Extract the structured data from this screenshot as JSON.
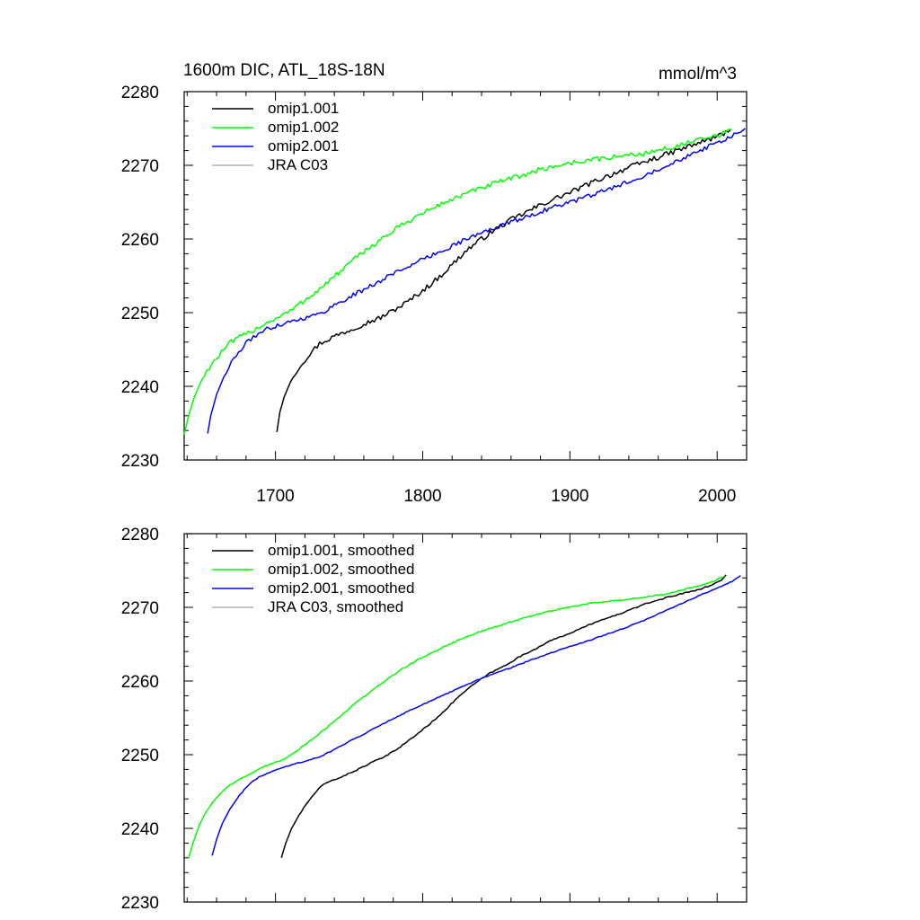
{
  "chart_data": [
    {
      "type": "line",
      "title": "1600m DIC, ATL_18S-18N",
      "units": "mmol/m^3",
      "xlabel": "",
      "ylabel": "",
      "xlim": [
        1638,
        2020
      ],
      "ylim": [
        2230,
        2280
      ],
      "x_ticks": [
        1700,
        1800,
        1900,
        2000
      ],
      "x_tick_labels": [
        "1700",
        "1800",
        "1900",
        "2000"
      ],
      "y_ticks": [
        2230,
        2240,
        2250,
        2260,
        2270,
        2280
      ],
      "y_tick_labels": [
        "2230",
        "2240",
        "2250",
        "2260",
        "2270",
        "2280"
      ],
      "legend_position": "top-left",
      "legend": [
        "omip1.001",
        "omip1.002",
        "omip2.001",
        "JRA C03"
      ],
      "series": [
        {
          "name": "omip1.001",
          "color": "#000000",
          "noise": 0.35,
          "points": [
            [
              1701,
              2233.8
            ],
            [
              1703,
              2236.5
            ],
            [
              1706,
              2238.6
            ],
            [
              1710,
              2240.5
            ],
            [
              1715,
              2242.3
            ],
            [
              1720,
              2243.6
            ],
            [
              1725,
              2244.8
            ],
            [
              1730,
              2245.8
            ],
            [
              1735,
              2246.3
            ],
            [
              1740,
              2246.8
            ],
            [
              1750,
              2247.6
            ],
            [
              1760,
              2248.5
            ],
            [
              1770,
              2249.2
            ],
            [
              1780,
              2250.3
            ],
            [
              1790,
              2251.5
            ],
            [
              1800,
              2253.0
            ],
            [
              1810,
              2254.6
            ],
            [
              1820,
              2256.5
            ],
            [
              1830,
              2258.5
            ],
            [
              1840,
              2260.0
            ],
            [
              1850,
              2261.4
            ],
            [
              1860,
              2262.6
            ],
            [
              1870,
              2263.6
            ],
            [
              1880,
              2264.6
            ],
            [
              1890,
              2265.5
            ],
            [
              1900,
              2266.3
            ],
            [
              1910,
              2267.2
            ],
            [
              1920,
              2268.1
            ],
            [
              1930,
              2268.9
            ],
            [
              1940,
              2269.7
            ],
            [
              1950,
              2270.4
            ],
            [
              1960,
              2271.1
            ],
            [
              1970,
              2271.8
            ],
            [
              1980,
              2272.5
            ],
            [
              1990,
              2273.2
            ],
            [
              2000,
              2273.9
            ],
            [
              2009,
              2274.8
            ]
          ]
        },
        {
          "name": "omip1.002",
          "color": "#00ff00",
          "noise": 0.35,
          "points": [
            [
              1638,
              2233.5
            ],
            [
              1641,
              2236.0
            ],
            [
              1645,
              2238.6
            ],
            [
              1650,
              2240.9
            ],
            [
              1655,
              2242.6
            ],
            [
              1660,
              2243.8
            ],
            [
              1665,
              2245.0
            ],
            [
              1670,
              2246.0
            ],
            [
              1680,
              2247.1
            ],
            [
              1690,
              2248.2
            ],
            [
              1700,
              2249.2
            ],
            [
              1710,
              2250.2
            ],
            [
              1720,
              2251.7
            ],
            [
              1730,
              2253.2
            ],
            [
              1740,
              2254.9
            ],
            [
              1750,
              2256.6
            ],
            [
              1760,
              2258.3
            ],
            [
              1770,
              2259.7
            ],
            [
              1780,
              2261.1
            ],
            [
              1790,
              2262.4
            ],
            [
              1800,
              2263.5
            ],
            [
              1810,
              2264.5
            ],
            [
              1820,
              2265.4
            ],
            [
              1830,
              2266.2
            ],
            [
              1840,
              2266.9
            ],
            [
              1850,
              2267.6
            ],
            [
              1860,
              2268.2
            ],
            [
              1870,
              2268.8
            ],
            [
              1880,
              2269.4
            ],
            [
              1890,
              2269.9
            ],
            [
              1900,
              2270.3
            ],
            [
              1910,
              2270.6
            ],
            [
              1920,
              2270.9
            ],
            [
              1930,
              2271.1
            ],
            [
              1940,
              2271.4
            ],
            [
              1950,
              2271.6
            ],
            [
              1960,
              2272.0
            ],
            [
              1970,
              2272.5
            ],
            [
              1980,
              2273.0
            ],
            [
              1990,
              2273.5
            ],
            [
              2000,
              2274.0
            ],
            [
              2010,
              2274.8
            ]
          ]
        },
        {
          "name": "omip2.001",
          "color": "#0000ff",
          "noise": 0.3,
          "points": [
            [
              1654,
              2233.6
            ],
            [
              1656,
              2236.0
            ],
            [
              1660,
              2238.9
            ],
            [
              1665,
              2241.3
            ],
            [
              1670,
              2243.2
            ],
            [
              1675,
              2244.6
            ],
            [
              1680,
              2245.8
            ],
            [
              1685,
              2246.7
            ],
            [
              1690,
              2247.4
            ],
            [
              1700,
              2248.2
            ],
            [
              1710,
              2248.8
            ],
            [
              1720,
              2249.3
            ],
            [
              1730,
              2249.8
            ],
            [
              1740,
              2251.0
            ],
            [
              1750,
              2252.1
            ],
            [
              1760,
              2253.1
            ],
            [
              1770,
              2254.2
            ],
            [
              1780,
              2255.3
            ],
            [
              1790,
              2256.3
            ],
            [
              1800,
              2257.2
            ],
            [
              1810,
              2258.1
            ],
            [
              1820,
              2259.1
            ],
            [
              1830,
              2260.0
            ],
            [
              1840,
              2260.8
            ],
            [
              1850,
              2261.6
            ],
            [
              1860,
              2262.3
            ],
            [
              1870,
              2263.0
            ],
            [
              1880,
              2263.7
            ],
            [
              1890,
              2264.4
            ],
            [
              1900,
              2265.0
            ],
            [
              1910,
              2265.6
            ],
            [
              1920,
              2266.3
            ],
            [
              1930,
              2267.0
            ],
            [
              1940,
              2267.8
            ],
            [
              1950,
              2268.6
            ],
            [
              1960,
              2269.5
            ],
            [
              1970,
              2270.4
            ],
            [
              1980,
              2271.3
            ],
            [
              1990,
              2272.2
            ],
            [
              2000,
              2273.0
            ],
            [
              2010,
              2273.9
            ],
            [
              2019,
              2275.0
            ]
          ]
        },
        {
          "name": "JRA C03",
          "color": "#b0b0b0",
          "noise": 0,
          "points": []
        }
      ]
    },
    {
      "type": "line",
      "title": "",
      "xlabel": "",
      "ylabel": "",
      "xlim": [
        1638,
        2020
      ],
      "ylim": [
        2230,
        2280
      ],
      "x_ticks": [
        1700,
        1800,
        1900,
        2000
      ],
      "x_tick_labels": [],
      "y_ticks": [
        2230,
        2240,
        2250,
        2260,
        2270,
        2280
      ],
      "y_tick_labels": [
        "2230",
        "2240",
        "2250",
        "2260",
        "2270",
        "2280"
      ],
      "legend_position": "top-left",
      "legend": [
        "omip1.001, smoothed",
        "omip1.002, smoothed",
        "omip2.001, smoothed",
        "JRA C03, smoothed"
      ],
      "series": [
        {
          "name": "omip1.001, smoothed",
          "color": "#000000",
          "noise": 0.08,
          "points": [
            [
              1704,
              2236.0
            ],
            [
              1707,
              2238.0
            ],
            [
              1711,
              2240.0
            ],
            [
              1716,
              2241.8
            ],
            [
              1721,
              2243.3
            ],
            [
              1726,
              2244.6
            ],
            [
              1731,
              2245.7
            ],
            [
              1736,
              2246.3
            ],
            [
              1745,
              2247.0
            ],
            [
              1755,
              2247.9
            ],
            [
              1765,
              2248.9
            ],
            [
              1775,
              2249.8
            ],
            [
              1785,
              2251.1
            ],
            [
              1795,
              2252.6
            ],
            [
              1805,
              2254.2
            ],
            [
              1815,
              2256.0
            ],
            [
              1825,
              2258.0
            ],
            [
              1835,
              2259.6
            ],
            [
              1845,
              2261.0
            ],
            [
              1855,
              2262.0
            ],
            [
              1865,
              2263.2
            ],
            [
              1875,
              2264.2
            ],
            [
              1885,
              2265.3
            ],
            [
              1895,
              2266.1
            ],
            [
              1905,
              2266.9
            ],
            [
              1915,
              2267.8
            ],
            [
              1925,
              2268.5
            ],
            [
              1935,
              2269.2
            ],
            [
              1945,
              2270.0
            ],
            [
              1955,
              2270.7
            ],
            [
              1965,
              2271.3
            ],
            [
              1975,
              2271.8
            ],
            [
              1985,
              2272.3
            ],
            [
              1995,
              2272.9
            ],
            [
              2003,
              2273.7
            ],
            [
              2006,
              2274.4
            ]
          ]
        },
        {
          "name": "omip1.002, smoothed",
          "color": "#00ff00",
          "noise": 0.08,
          "points": [
            [
              1641,
              2235.9
            ],
            [
              1644,
              2238.0
            ],
            [
              1648,
              2240.3
            ],
            [
              1653,
              2242.3
            ],
            [
              1658,
              2243.7
            ],
            [
              1663,
              2244.8
            ],
            [
              1668,
              2245.8
            ],
            [
              1675,
              2246.6
            ],
            [
              1685,
              2247.6
            ],
            [
              1695,
              2248.6
            ],
            [
              1705,
              2249.3
            ],
            [
              1715,
              2250.6
            ],
            [
              1725,
              2252.1
            ],
            [
              1735,
              2253.7
            ],
            [
              1745,
              2255.4
            ],
            [
              1755,
              2257.1
            ],
            [
              1765,
              2258.6
            ],
            [
              1775,
              2260.1
            ],
            [
              1785,
              2261.5
            ],
            [
              1795,
              2262.7
            ],
            [
              1805,
              2263.7
            ],
            [
              1815,
              2264.7
            ],
            [
              1825,
              2265.6
            ],
            [
              1835,
              2266.4
            ],
            [
              1845,
              2267.1
            ],
            [
              1855,
              2267.7
            ],
            [
              1865,
              2268.3
            ],
            [
              1875,
              2268.9
            ],
            [
              1885,
              2269.4
            ],
            [
              1895,
              2269.9
            ],
            [
              1905,
              2270.2
            ],
            [
              1915,
              2270.6
            ],
            [
              1925,
              2270.8
            ],
            [
              1935,
              2271.0
            ],
            [
              1945,
              2271.2
            ],
            [
              1955,
              2271.5
            ],
            [
              1965,
              2271.8
            ],
            [
              1975,
              2272.3
            ],
            [
              1985,
              2272.8
            ],
            [
              1995,
              2273.3
            ],
            [
              2005,
              2274.2
            ]
          ]
        },
        {
          "name": "omip2.001, smoothed",
          "color": "#0000ff",
          "noise": 0.06,
          "points": [
            [
              1657,
              2236.3
            ],
            [
              1660,
              2238.5
            ],
            [
              1664,
              2240.7
            ],
            [
              1669,
              2242.6
            ],
            [
              1674,
              2244.1
            ],
            [
              1679,
              2245.3
            ],
            [
              1684,
              2246.3
            ],
            [
              1690,
              2247.1
            ],
            [
              1700,
              2247.9
            ],
            [
              1710,
              2248.6
            ],
            [
              1720,
              2249.1
            ],
            [
              1730,
              2249.7
            ],
            [
              1740,
              2250.7
            ],
            [
              1750,
              2251.8
            ],
            [
              1760,
              2252.8
            ],
            [
              1770,
              2253.9
            ],
            [
              1780,
              2254.9
            ],
            [
              1790,
              2255.9
            ],
            [
              1800,
              2256.8
            ],
            [
              1810,
              2257.7
            ],
            [
              1820,
              2258.6
            ],
            [
              1830,
              2259.5
            ],
            [
              1840,
              2260.4
            ],
            [
              1850,
              2261.1
            ],
            [
              1860,
              2261.8
            ],
            [
              1870,
              2262.6
            ],
            [
              1880,
              2263.3
            ],
            [
              1890,
              2264.0
            ],
            [
              1900,
              2264.7
            ],
            [
              1910,
              2265.3
            ],
            [
              1920,
              2266.0
            ],
            [
              1930,
              2266.7
            ],
            [
              1940,
              2267.4
            ],
            [
              1950,
              2268.2
            ],
            [
              1960,
              2269.1
            ],
            [
              1970,
              2270.0
            ],
            [
              1980,
              2270.9
            ],
            [
              1990,
              2271.8
            ],
            [
              2000,
              2272.6
            ],
            [
              2010,
              2273.5
            ],
            [
              2016,
              2274.3
            ]
          ]
        },
        {
          "name": "JRA C03, smoothed",
          "color": "#b0b0b0",
          "noise": 0,
          "points": []
        }
      ]
    }
  ]
}
